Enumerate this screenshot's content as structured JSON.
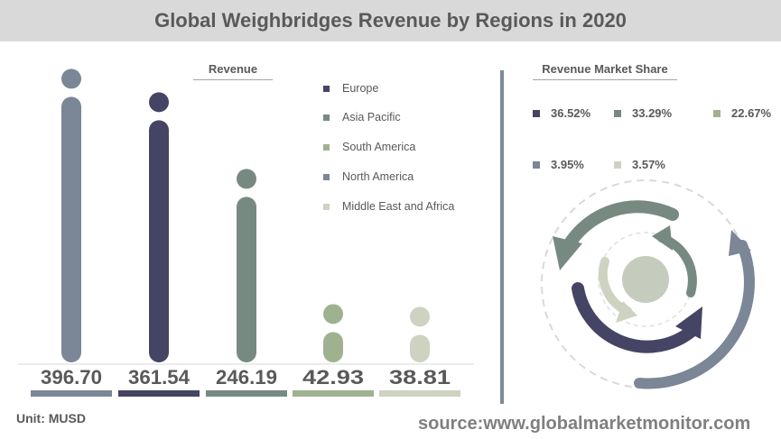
{
  "title": "Global Weighbridges Revenue by Regions in 2020",
  "revenue_subtitle": "Revenue",
  "share_subtitle": "Revenue Market Share",
  "unit": "Unit:  MUSD",
  "source": "source:www.globalmarketmonitor.com",
  "colors": {
    "Europe": "#7b8696",
    "Asia Pacific": "#454464",
    "South America": "#778a82",
    "North America": "#9eb290",
    "Middle East and Africa": "#cdd3c0"
  },
  "legend": [
    {
      "label": "Europe",
      "color": "#454464"
    },
    {
      "label": "Asia Pacific",
      "color": "#778a82"
    },
    {
      "label": "South America",
      "color": "#9eb290"
    },
    {
      "label": "North America",
      "color": "#7b8696"
    },
    {
      "label": "Middle East and Africa",
      "color": "#cdd3c0"
    }
  ],
  "shares": [
    {
      "label": "36.52%",
      "color": "#454464"
    },
    {
      "label": "33.29%",
      "color": "#778a82"
    },
    {
      "label": "22.67%",
      "color": "#9eb290"
    },
    {
      "label": "3.95%",
      "color": "#7b8696"
    },
    {
      "label": "3.57%",
      "color": "#cdd3c0"
    }
  ],
  "chart_data": {
    "type": "bar",
    "title": "Global Weighbridges Revenue by Regions in 2020",
    "categories": [
      "Europe",
      "Asia Pacific",
      "South America",
      "North America",
      "Middle East and Africa"
    ],
    "values": [
      396.7,
      361.54,
      246.19,
      42.93,
      38.81
    ],
    "value_labels": [
      "396.70",
      "361.54",
      "246.19",
      "42.93",
      "38.81"
    ],
    "bar_colors": [
      "#7b8696",
      "#454464",
      "#778a82",
      "#9eb290",
      "#cdd3c0"
    ],
    "ylabel": "Revenue",
    "unit": "MUSD"
  }
}
